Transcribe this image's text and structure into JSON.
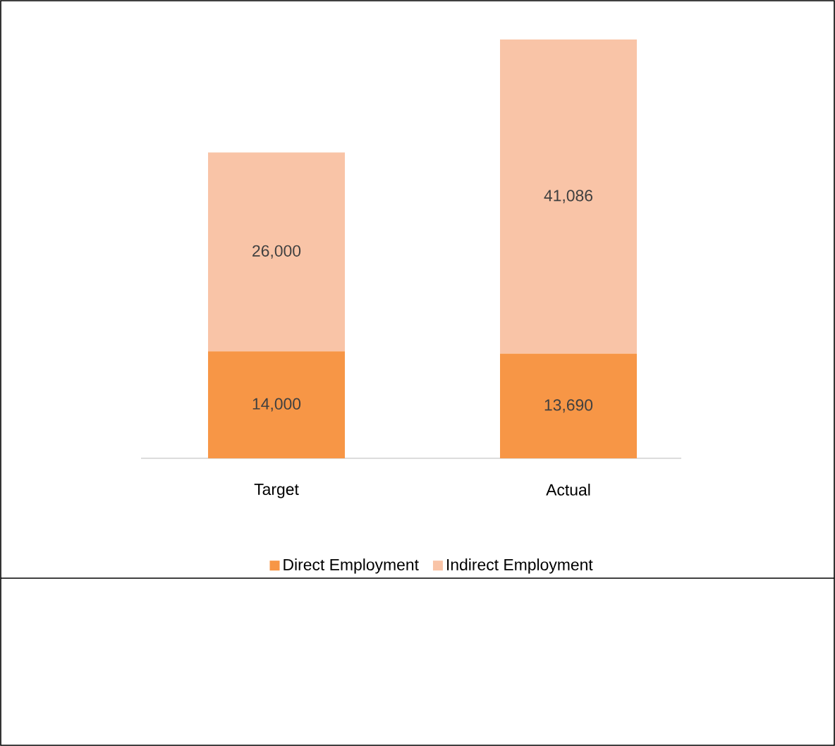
{
  "chart_data": {
    "type": "bar",
    "stacked": true,
    "legend": "bottom",
    "categories": [
      "Target",
      "Actual"
    ],
    "series": [
      {
        "name": "Direct Employment",
        "color": "#f79646",
        "values": [
          14000,
          13690
        ],
        "value_labels": [
          "14,000",
          "13,690"
        ]
      },
      {
        "name": "Indirect Employment",
        "color": "#f9c4a7",
        "values": [
          26000,
          41086
        ],
        "value_labels": [
          "26,000",
          "41,086"
        ]
      }
    ]
  }
}
